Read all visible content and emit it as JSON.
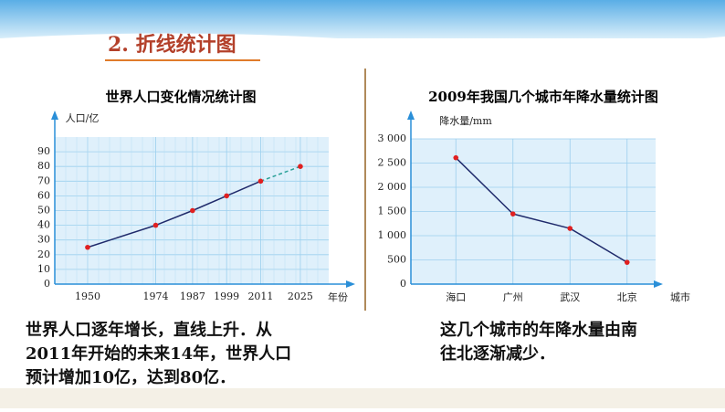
{
  "heading": "2. 折线统计图",
  "captions": [
    [
      "世界人口逐年增长，直线上升．从",
      "2011年开始的未来14年，世界人口",
      "预计增加10亿，达到80亿．"
    ],
    [
      "这几个城市的年降水量由南",
      "往北逐渐减少．"
    ]
  ],
  "chart_data": [
    {
      "type": "line",
      "title": "世界人口变化情况统计图",
      "y_label": "人口/亿",
      "x_label": "年份",
      "x": [
        1950,
        1974,
        1987,
        1999,
        2011,
        2025
      ],
      "series": [
        {
          "color": "#1f2a6b",
          "values": [
            25,
            40,
            50,
            60,
            70,
            80
          ],
          "projected": [
            false,
            false,
            false,
            false,
            false,
            true
          ]
        }
      ],
      "xlim": [
        1941,
        2035
      ],
      "xticks": [
        1950,
        1974,
        1987,
        1999,
        2011,
        2025
      ],
      "ylim": [
        0,
        100
      ],
      "yticks": [
        0,
        10,
        20,
        30,
        40,
        50,
        60,
        70,
        80,
        90
      ],
      "grid": true,
      "marker_color": "#e02020",
      "projected_color": "#2aa198"
    },
    {
      "type": "line",
      "title": "2009年我国几个城市年降水量统计图",
      "y_label": "降水量/mm",
      "x_label": "城市",
      "categories": [
        "海口",
        "广州",
        "武汉",
        "北京"
      ],
      "series": [
        {
          "color": "#1f2a6b",
          "values": [
            2610,
            1450,
            1150,
            450
          ]
        }
      ],
      "ylim": [
        0,
        3000
      ],
      "yticks": [
        0,
        500,
        {
          "value": 1000,
          "label": "1 000"
        },
        {
          "value": 1500,
          "label": "1 500"
        },
        {
          "value": 2000,
          "label": "2 000"
        },
        {
          "value": 2500,
          "label": "2 500"
        },
        {
          "value": 3000,
          "label": "3 000"
        }
      ],
      "grid": true,
      "marker_color": "#e02020"
    }
  ]
}
